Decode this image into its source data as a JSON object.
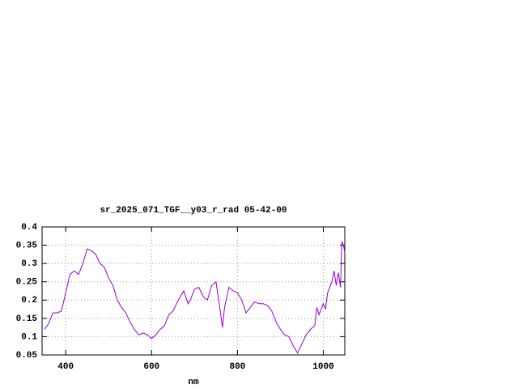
{
  "chart_data": {
    "type": "line",
    "title": "sr_2025_071_TGF__y03_r_rad 05-42-00",
    "xlabel": "nm",
    "x": [
      350,
      360,
      370,
      380,
      390,
      400,
      410,
      420,
      430,
      440,
      450,
      460,
      470,
      480,
      490,
      500,
      510,
      520,
      530,
      540,
      550,
      560,
      570,
      580,
      590,
      600,
      610,
      620,
      630,
      640,
      650,
      660,
      670,
      675,
      685,
      690,
      700,
      710,
      720,
      730,
      740,
      750,
      760,
      765,
      770,
      780,
      790,
      800,
      810,
      820,
      830,
      840,
      850,
      860,
      870,
      880,
      890,
      900,
      910,
      920,
      930,
      940,
      950,
      960,
      970,
      980,
      985,
      990,
      1000,
      1005,
      1010,
      1020,
      1025,
      1030,
      1035,
      1040,
      1043,
      1047,
      1050
    ],
    "series": [
      {
        "name": "r_rad",
        "color": "#9400d3",
        "values": [
          0.12,
          0.135,
          0.165,
          0.165,
          0.17,
          0.22,
          0.27,
          0.28,
          0.27,
          0.3,
          0.34,
          0.335,
          0.325,
          0.3,
          0.29,
          0.26,
          0.24,
          0.2,
          0.18,
          0.165,
          0.14,
          0.12,
          0.105,
          0.11,
          0.105,
          0.095,
          0.105,
          0.12,
          0.13,
          0.16,
          0.17,
          0.195,
          0.215,
          0.225,
          0.19,
          0.2,
          0.23,
          0.235,
          0.21,
          0.2,
          0.24,
          0.25,
          0.17,
          0.125,
          0.18,
          0.235,
          0.225,
          0.22,
          0.2,
          0.165,
          0.18,
          0.195,
          0.19,
          0.19,
          0.185,
          0.17,
          0.14,
          0.12,
          0.105,
          0.1,
          0.075,
          0.055,
          0.08,
          0.105,
          0.12,
          0.13,
          0.18,
          0.16,
          0.19,
          0.175,
          0.22,
          0.25,
          0.28,
          0.24,
          0.275,
          0.235,
          0.36,
          0.35,
          0.33
        ]
      }
    ],
    "xlim": [
      345,
      1050
    ],
    "xticks": [
      400,
      600,
      800,
      1000
    ],
    "ylim": [
      0.05,
      0.4
    ],
    "yticks": [
      0.05,
      0.1,
      0.15,
      0.2,
      0.25,
      0.3,
      0.35,
      0.4
    ],
    "grid": true
  }
}
